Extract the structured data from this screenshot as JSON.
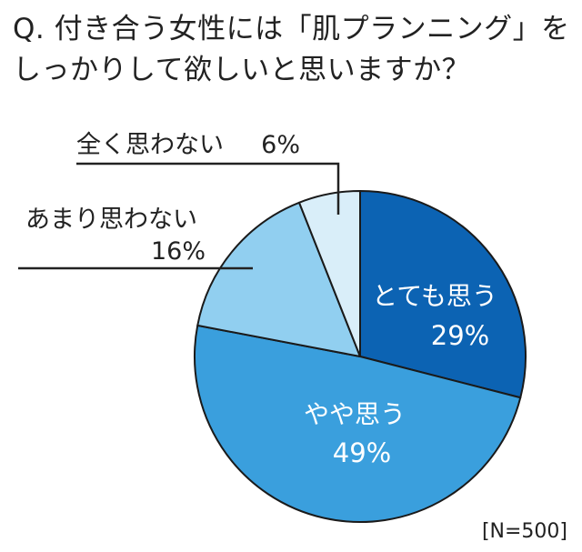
{
  "title": {
    "line1": "Q. 付き合う女性には「肌プランニング」を",
    "line2": "しっかりして欲しいと思いますか？"
  },
  "sample_size": "[N=500]",
  "chart_data": {
    "type": "pie",
    "title": "Q. 付き合う女性には「肌プランニング」をしっかりして欲しいと思いますか？",
    "start_angle_deg": 0,
    "direction": "clockwise",
    "slices": [
      {
        "label": "とても思う",
        "value": 29,
        "value_label": "29%",
        "color": "#0c63b3",
        "label_color": "#ffffff"
      },
      {
        "label": "やや思う",
        "value": 49,
        "value_label": "49%",
        "color": "#3a9fdd",
        "label_color": "#ffffff"
      },
      {
        "label": "あまり思わない",
        "value": 16,
        "value_label": "16%",
        "color": "#91cff0",
        "label_color": "#222222"
      },
      {
        "label": "全く思わない",
        "value": 6,
        "value_label": "6%",
        "color": "#d9eef9",
        "label_color": "#222222"
      }
    ]
  }
}
